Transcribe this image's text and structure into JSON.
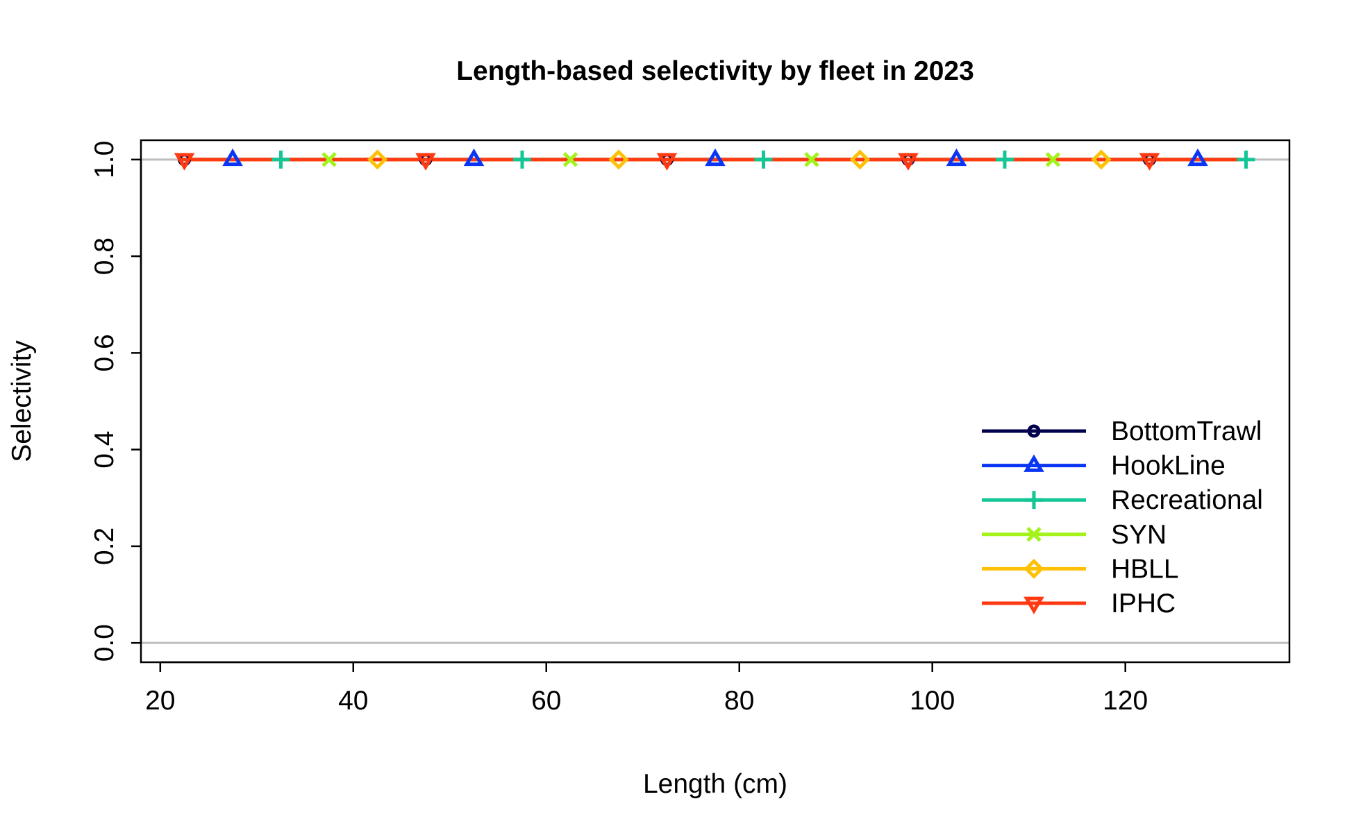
{
  "chart_data": {
    "type": "line",
    "title": "Length-based selectivity by fleet in 2023",
    "xlabel": "Length (cm)",
    "ylabel": "Selectivity",
    "xlim": [
      18,
      137
    ],
    "ylim": [
      -0.04,
      1.04
    ],
    "x_ticks": [
      20,
      40,
      60,
      80,
      100,
      120
    ],
    "y_ticks": [
      0.0,
      0.2,
      0.4,
      0.6,
      0.8,
      1.0
    ],
    "x_tick_labels": [
      "20",
      "40",
      "60",
      "80",
      "100",
      "120"
    ],
    "y_tick_labels": [
      "0.0",
      "0.2",
      "0.4",
      "0.6",
      "0.8",
      "1.0"
    ],
    "reference_lines_y": [
      0.0,
      1.0
    ],
    "x_range": [
      22,
      132
    ],
    "grid": false,
    "legend_position": "bottom-right",
    "series": [
      {
        "name": "BottomTrawl",
        "color": "#00004D",
        "marker": "circle",
        "x": [
          22,
          132
        ],
        "y": [
          1.0,
          1.0
        ],
        "marker_x": [
          22.5,
          47.5,
          72.5,
          97.5,
          122.5
        ]
      },
      {
        "name": "HookLine",
        "color": "#0A35F5",
        "marker": "triangle-up",
        "x": [
          22,
          132
        ],
        "y": [
          1.0,
          1.0
        ],
        "marker_x": [
          27.5,
          52.5,
          77.5,
          102.5,
          127.5
        ]
      },
      {
        "name": "Recreational",
        "color": "#12C795",
        "marker": "plus",
        "x": [
          22,
          132
        ],
        "y": [
          1.0,
          1.0
        ],
        "marker_x": [
          32.5,
          57.5,
          82.5,
          107.5,
          132.5
        ]
      },
      {
        "name": "SYN",
        "color": "#A3F21A",
        "marker": "cross",
        "x": [
          22,
          132
        ],
        "y": [
          1.0,
          1.0
        ],
        "marker_x": [
          37.5,
          62.5,
          87.5,
          112.5
        ]
      },
      {
        "name": "HBLL",
        "color": "#FFC107",
        "marker": "diamond",
        "x": [
          22,
          132
        ],
        "y": [
          1.0,
          1.0
        ],
        "marker_x": [
          42.5,
          67.5,
          92.5,
          117.5
        ]
      },
      {
        "name": "IPHC",
        "color": "#FF3A12",
        "marker": "triangle-down",
        "x": [
          22,
          132
        ],
        "y": [
          1.0,
          1.0
        ],
        "marker_x": [
          22.5,
          47.5,
          72.5,
          97.5,
          122.5
        ]
      }
    ]
  }
}
